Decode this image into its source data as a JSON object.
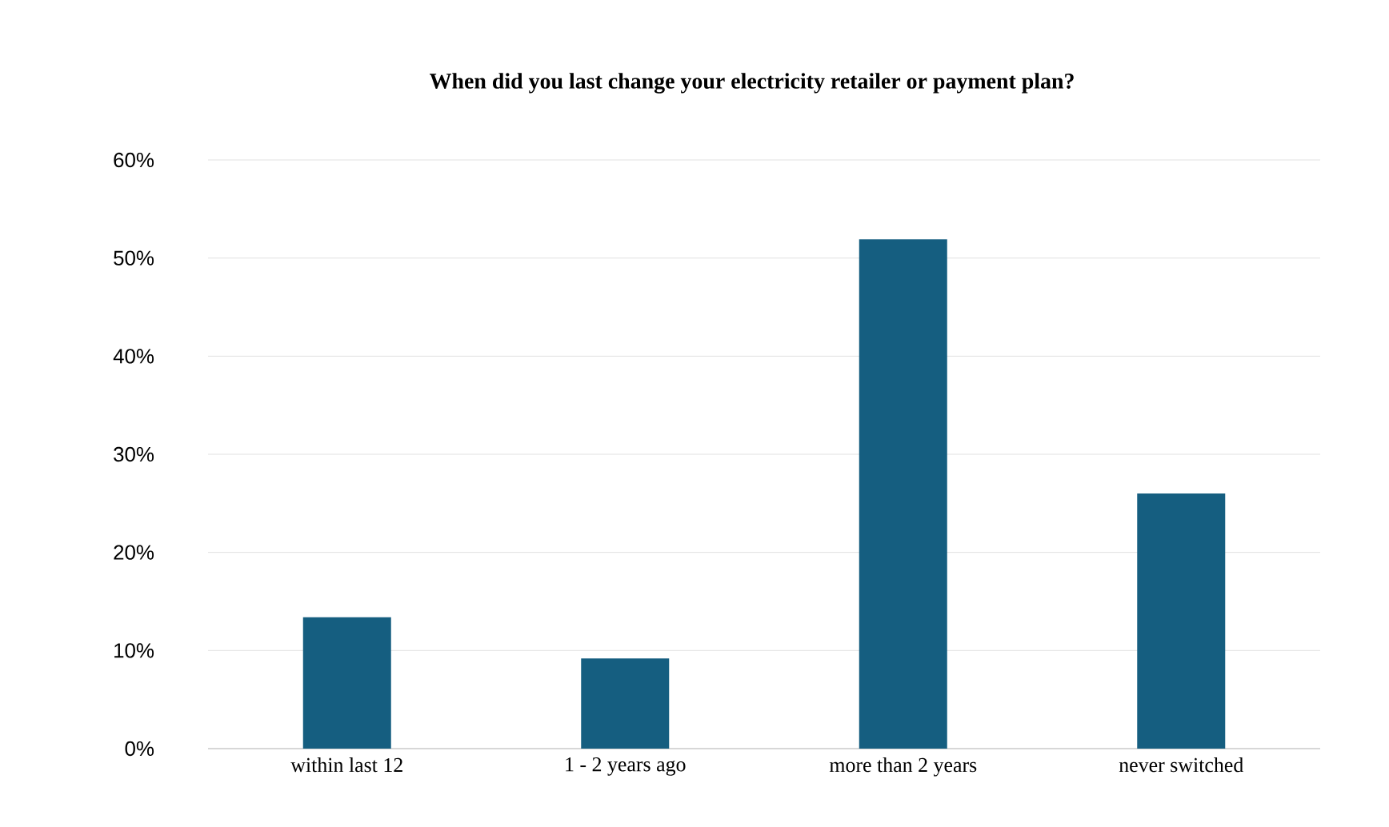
{
  "chart_data": {
    "type": "bar",
    "title": "When did you last change your electricity retailer or payment plan?",
    "categories": [
      "within last 12",
      "1 - 2 years ago",
      "more than 2 years",
      "never switched"
    ],
    "values": [
      13.4,
      9.2,
      51.9,
      26.0
    ],
    "color": "#155e80",
    "ylim": [
      0,
      60
    ],
    "yticks": [
      {
        "value": 0,
        "label": "0%"
      },
      {
        "value": 10,
        "label": "10%"
      },
      {
        "value": 20,
        "label": "20%"
      },
      {
        "value": 30,
        "label": "30%"
      },
      {
        "value": 40,
        "label": "40%"
      },
      {
        "value": 50,
        "label": "50%"
      },
      {
        "value": 60,
        "label": "60%"
      }
    ],
    "grid": "y"
  }
}
